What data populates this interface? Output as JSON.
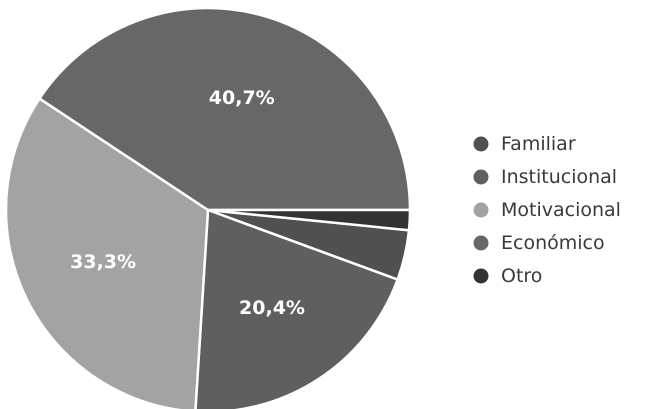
{
  "chart_data": {
    "type": "pie",
    "legend_position": "right",
    "slices": [
      {
        "name": "Familiar",
        "value": 4.0,
        "label": "",
        "color": "#505050"
      },
      {
        "name": "Institucional",
        "value": 20.4,
        "label": "20,4%",
        "color": "#5f5f5f"
      },
      {
        "name": "Motivacional",
        "value": 33.3,
        "label": "33,3%",
        "color": "#a3a3a3"
      },
      {
        "name": "Económico",
        "value": 40.7,
        "label": "40,7%",
        "color": "#676767"
      },
      {
        "name": "Otro",
        "value": 1.6,
        "label": "",
        "color": "#333333"
      }
    ],
    "legend": {
      "items": [
        {
          "name": "Familiar",
          "color": "#505050"
        },
        {
          "name": "Institucional",
          "color": "#5f5f5f"
        },
        {
          "name": "Motivacional",
          "color": "#a3a3a3"
        },
        {
          "name": "Económico",
          "color": "#676767"
        },
        {
          "name": "Otro",
          "color": "#333333"
        }
      ]
    }
  }
}
